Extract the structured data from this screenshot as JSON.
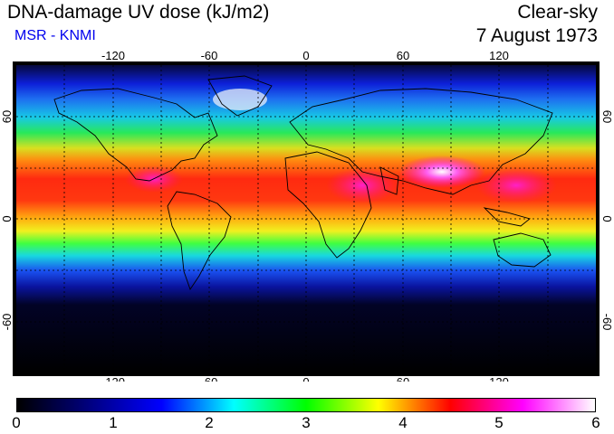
{
  "header": {
    "title": "DNA-damage UV dose (kJ/m2)",
    "credit": "MSR - KNMI",
    "condition": "Clear-sky",
    "date": "7 August 1973"
  },
  "map": {
    "projection": "equirectangular",
    "lon_ticks": [
      "-120",
      "-60",
      "0",
      "60",
      "120"
    ],
    "lat_ticks": [
      "60",
      "0",
      "-60"
    ],
    "grid": "dashed 30-degree",
    "coastlines": true
  },
  "colorbar": {
    "labels": [
      "0",
      "1",
      "2",
      "3",
      "4",
      "5",
      "6"
    ],
    "colors": [
      "#000000",
      "#000080",
      "#0000ff",
      "#00ffff",
      "#00ff00",
      "#ffff00",
      "#ff0000",
      "#ff00ff",
      "#ffffff"
    ]
  }
}
